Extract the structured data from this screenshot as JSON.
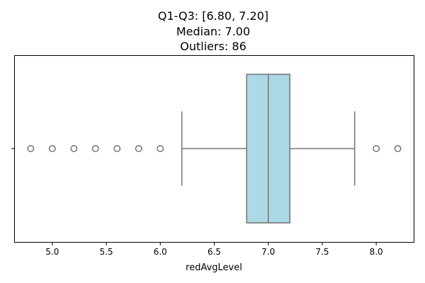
{
  "chart_data": {
    "type": "box",
    "orientation": "horizontal",
    "title_lines": [
      "Q1-Q3: [6.80, 7.20]",
      "Median: 7.00",
      "Outliers: 86"
    ],
    "xlabel": "redAvgLevel",
    "ylabel": "",
    "xlim": [
      4.65,
      8.35
    ],
    "xticks": [
      5.0,
      5.5,
      6.0,
      6.5,
      7.0,
      7.5,
      8.0
    ],
    "xtick_labels": [
      "5.0",
      "5.5",
      "6.0",
      "6.5",
      "7.0",
      "7.5",
      "8.0"
    ],
    "box": {
      "q1": 6.8,
      "median": 7.0,
      "q3": 7.2,
      "whisker_low": 6.2,
      "whisker_high": 7.8
    },
    "outliers": [
      4.8,
      5.0,
      5.2,
      5.4,
      5.6,
      5.8,
      6.0,
      8.0,
      8.2
    ],
    "grid": false,
    "colors": {
      "box_fill": "#add8e6",
      "line": "#737373",
      "axis": "#000000"
    }
  }
}
